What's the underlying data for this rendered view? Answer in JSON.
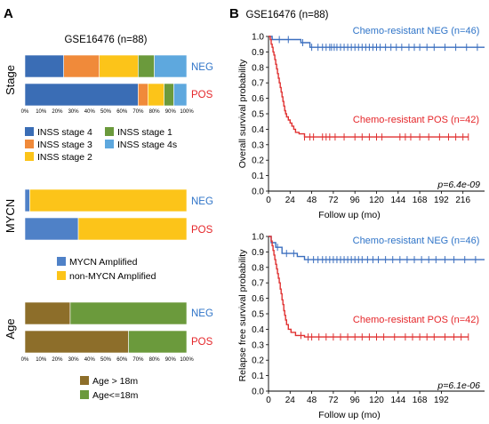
{
  "panels": {
    "a": {
      "letter": "A",
      "title": "GSE16476 (n=88)"
    },
    "b": {
      "letter": "B",
      "title": "GSE16476 (n=88)"
    }
  },
  "colors": {
    "neg": "#3b6fbf",
    "pos": "#e03131",
    "blue_label": "#2f74c8",
    "red_label": "#e5262a"
  },
  "chart_data": [
    {
      "type": "bar",
      "subtype": "stacked-100",
      "group_label": "Stage",
      "categories": [
        "NEG",
        "POS"
      ],
      "xticks": [
        "0%",
        "10%",
        "20%",
        "30%",
        "40%",
        "50%",
        "60%",
        "70%",
        "80%",
        "90%",
        "100%"
      ],
      "xlim": [
        0,
        100
      ],
      "series": [
        {
          "name": "INSS stage 4",
          "color": "#3a6db5",
          "values": [
            24,
            70
          ]
        },
        {
          "name": "INSS stage 3",
          "color": "#f08a3a",
          "values": [
            22,
            6
          ]
        },
        {
          "name": "INSS stage 2",
          "color": "#fcc419",
          "values": [
            24,
            10
          ]
        },
        {
          "name": "INSS stage 1",
          "color": "#6b9a3c",
          "values": [
            10,
            6
          ]
        },
        {
          "name": "INSS stage 4s",
          "color": "#5ea8de",
          "values": [
            20,
            8
          ]
        }
      ],
      "legend": {
        "placement": "bottom",
        "columns": 2,
        "order": [
          0,
          1,
          2,
          3,
          4
        ]
      }
    },
    {
      "type": "bar",
      "subtype": "stacked-100",
      "group_label": "MYCN",
      "categories": [
        "NEG",
        "POS"
      ],
      "xlim": [
        0,
        100
      ],
      "series": [
        {
          "name": "MYCN Amplified",
          "color": "#4f81c7",
          "values": [
            3,
            33
          ]
        },
        {
          "name": "non-MYCN Amplified",
          "color": "#fcc419",
          "values": [
            97,
            67
          ]
        }
      ],
      "legend": {
        "placement": "bottom",
        "columns": 1
      }
    },
    {
      "type": "bar",
      "subtype": "stacked-100",
      "group_label": "Age",
      "categories": [
        "NEG",
        "POS"
      ],
      "xticks": [
        "0%",
        "10%",
        "20%",
        "30%",
        "40%",
        "50%",
        "60%",
        "70%",
        "80%",
        "90%",
        "100%"
      ],
      "xlim": [
        0,
        100
      ],
      "series": [
        {
          "name": "Age > 18m",
          "color": "#8d6e2a",
          "values": [
            28,
            64
          ]
        },
        {
          "name": "Age<=18m",
          "color": "#6b9a3c",
          "values": [
            72,
            36
          ]
        }
      ],
      "legend": {
        "placement": "bottom",
        "columns": 1
      }
    },
    {
      "type": "line",
      "subtype": "kaplan-meier",
      "ylabel": "Overall survival probability",
      "xlabel": "Follow up (mo)",
      "xlim": [
        0,
        240
      ],
      "ylim": [
        0,
        1
      ],
      "xticks": [
        0,
        24,
        48,
        72,
        96,
        120,
        144,
        168,
        192,
        216
      ],
      "yticks": [
        "0.0",
        "0.1",
        "0.2",
        "0.3",
        "0.4",
        "0.5",
        "0.6",
        "0.7",
        "0.8",
        "0.9",
        "1.0"
      ],
      "pvalue": "p=6.4e-09",
      "series": [
        {
          "name": "Chemo-resistant NEG (n=46)",
          "color": "#3b6fbf",
          "steps": [
            [
              0,
              1.0
            ],
            [
              4,
              0.98
            ],
            [
              36,
              0.96
            ],
            [
              46,
              0.93
            ],
            [
              240,
              0.93
            ]
          ],
          "censors": [
            12,
            22,
            38,
            48,
            55,
            60,
            64,
            68,
            70,
            73,
            76,
            80,
            84,
            88,
            92,
            96,
            100,
            104,
            108,
            112,
            116,
            120,
            124,
            130,
            136,
            142,
            148,
            156,
            162,
            168,
            176,
            184,
            196,
            208,
            220,
            232
          ]
        },
        {
          "name": "Chemo-resistant POS (n=42)",
          "color": "#e03131",
          "steps": [
            [
              0,
              1.0
            ],
            [
              2,
              0.98
            ],
            [
              3,
              0.95
            ],
            [
              4,
              0.93
            ],
            [
              5,
              0.9
            ],
            [
              6,
              0.88
            ],
            [
              7,
              0.85
            ],
            [
              8,
              0.82
            ],
            [
              9,
              0.79
            ],
            [
              10,
              0.76
            ],
            [
              11,
              0.73
            ],
            [
              12,
              0.7
            ],
            [
              13,
              0.67
            ],
            [
              14,
              0.64
            ],
            [
              15,
              0.61
            ],
            [
              16,
              0.58
            ],
            [
              17,
              0.55
            ],
            [
              18,
              0.52
            ],
            [
              19,
              0.5
            ],
            [
              20,
              0.48
            ],
            [
              22,
              0.46
            ],
            [
              24,
              0.44
            ],
            [
              26,
              0.42
            ],
            [
              28,
              0.4
            ],
            [
              30,
              0.38
            ],
            [
              34,
              0.37
            ],
            [
              40,
              0.35
            ],
            [
              222,
              0.35
            ]
          ],
          "censors": [
            40,
            46,
            50,
            60,
            64,
            68,
            74,
            84,
            96,
            104,
            112,
            120,
            126,
            146,
            152,
            158,
            168,
            178,
            190,
            200,
            208,
            216,
            222
          ]
        }
      ]
    },
    {
      "type": "line",
      "subtype": "kaplan-meier",
      "ylabel": "Relapse free survival probability",
      "xlabel": "Follow up (mo)",
      "xlim": [
        0,
        240
      ],
      "ylim": [
        0,
        1
      ],
      "xticks": [
        0,
        24,
        48,
        72,
        96,
        120,
        144,
        168,
        192
      ],
      "yticks": [
        "0.0",
        "0.1",
        "0.2",
        "0.3",
        "0.4",
        "0.5",
        "0.6",
        "0.7",
        "0.8",
        "0.9",
        "1.0"
      ],
      "pvalue": "p=6.1e-06",
      "series": [
        {
          "name": "Chemo-resistant NEG (n=46)",
          "color": "#3b6fbf",
          "steps": [
            [
              0,
              1.0
            ],
            [
              3,
              0.96
            ],
            [
              8,
              0.93
            ],
            [
              15,
              0.89
            ],
            [
              32,
              0.87
            ],
            [
              40,
              0.85
            ],
            [
              240,
              0.85
            ]
          ],
          "censors": [
            10,
            20,
            28,
            44,
            50,
            55,
            60,
            64,
            68,
            72,
            76,
            80,
            84,
            88,
            92,
            96,
            100,
            104,
            110,
            116,
            122,
            130,
            138,
            146,
            154,
            162,
            170,
            178,
            186,
            196,
            206,
            218,
            230
          ]
        },
        {
          "name": "Chemo-resistant POS (n=42)",
          "color": "#e03131",
          "steps": [
            [
              0,
              1.0
            ],
            [
              3,
              0.97
            ],
            [
              4,
              0.94
            ],
            [
              5,
              0.91
            ],
            [
              6,
              0.88
            ],
            [
              7,
              0.85
            ],
            [
              8,
              0.82
            ],
            [
              9,
              0.79
            ],
            [
              10,
              0.76
            ],
            [
              11,
              0.73
            ],
            [
              12,
              0.7
            ],
            [
              13,
              0.66
            ],
            [
              14,
              0.63
            ],
            [
              15,
              0.59
            ],
            [
              16,
              0.56
            ],
            [
              17,
              0.52
            ],
            [
              18,
              0.49
            ],
            [
              19,
              0.46
            ],
            [
              20,
              0.43
            ],
            [
              22,
              0.4
            ],
            [
              25,
              0.38
            ],
            [
              30,
              0.36
            ],
            [
              40,
              0.35
            ],
            [
              222,
              0.35
            ]
          ],
          "censors": [
            36,
            44,
            48,
            56,
            64,
            72,
            80,
            88,
            96,
            104,
            112,
            120,
            128,
            140,
            152,
            160,
            168,
            176,
            184,
            196,
            206,
            214,
            222
          ]
        }
      ]
    }
  ]
}
